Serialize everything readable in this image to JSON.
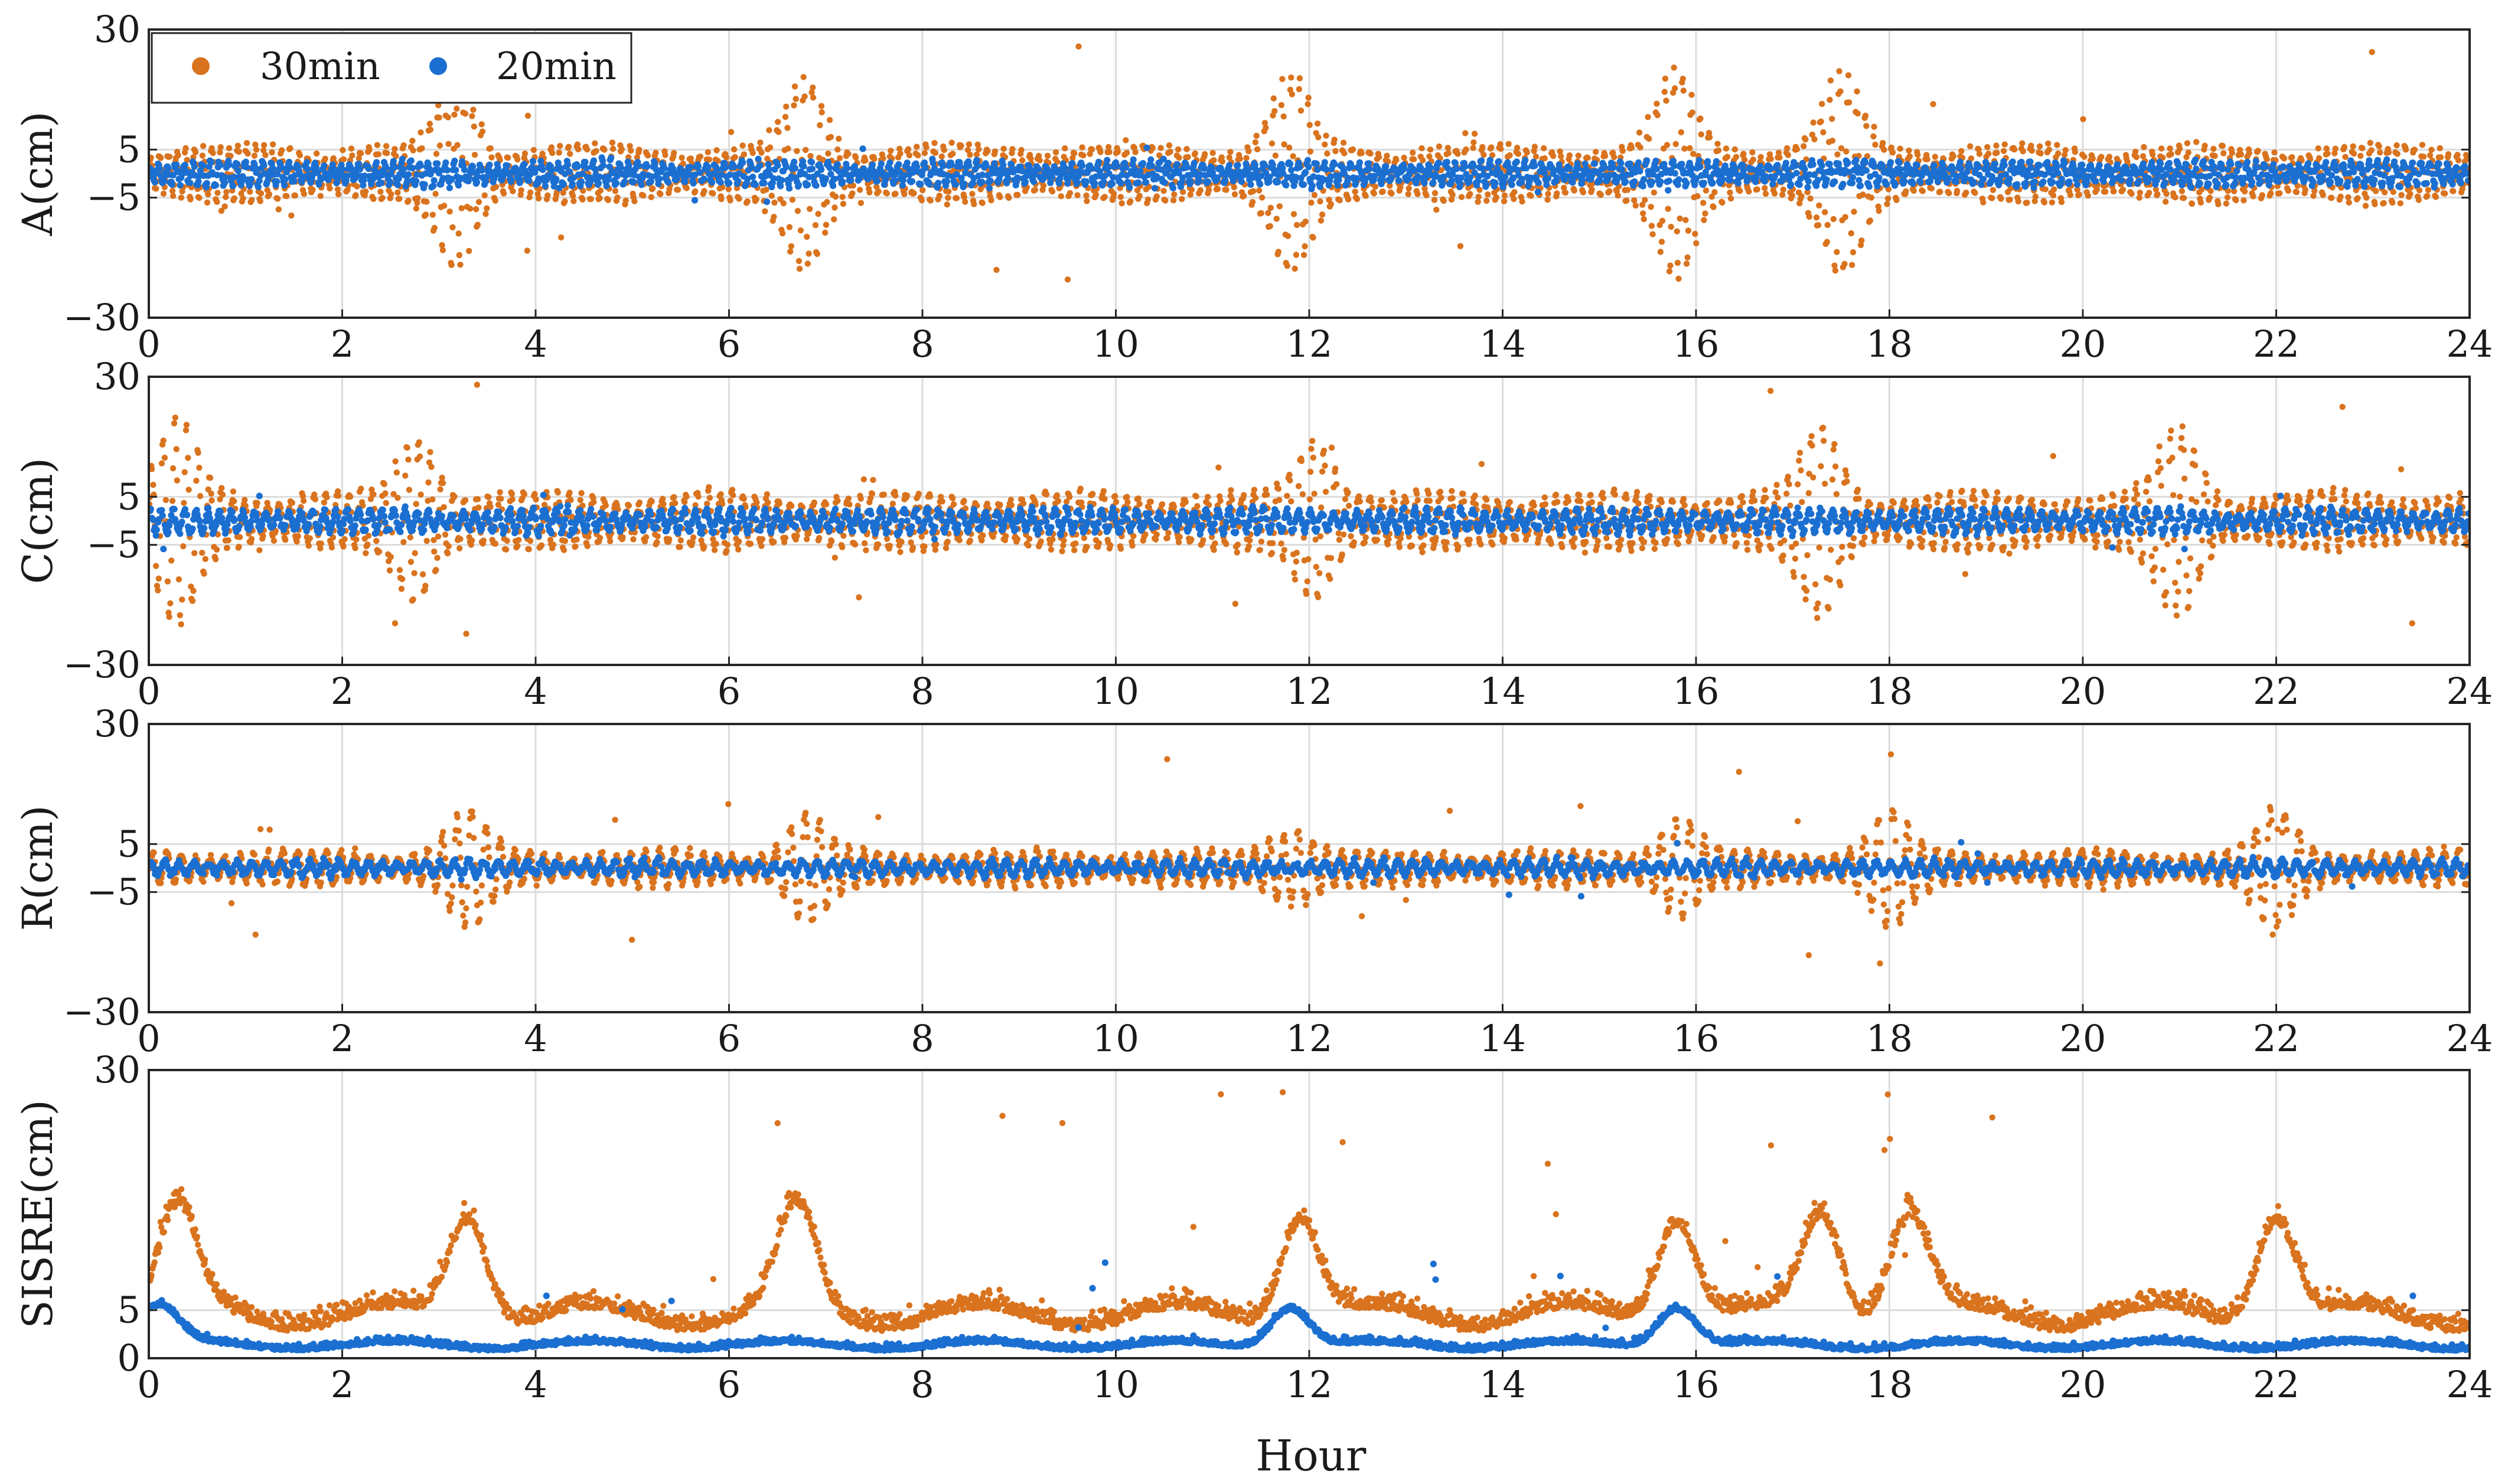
{
  "chart_data": {
    "type": "scatter",
    "x_label": "Hour",
    "x_range": [
      0,
      24
    ],
    "x_ticks": [
      "0",
      "2",
      "4",
      "6",
      "8",
      "10",
      "12",
      "14",
      "16",
      "18",
      "20",
      "22",
      "24"
    ],
    "legend": {
      "placement": "top-left",
      "entries": [
        {
          "name": "30min",
          "color": "#d9731e"
        },
        {
          "name": "20min",
          "color": "#1b6fd1"
        }
      ]
    },
    "panels": [
      {
        "id": "A",
        "ylabel": "A(cm)",
        "ylim": [
          -30,
          30
        ],
        "yticks": [
          "30",
          "5",
          "−5",
          "−30"
        ],
        "ytick_values": [
          30,
          5,
          -5,
          -30
        ],
        "series": [
          {
            "name": "30min",
            "typical_amplitude_cm": 6,
            "max_abs_cm": 28,
            "bursts_at_hours": [
              3.2,
              6.8,
              11.8,
              15.8,
              17.5
            ]
          },
          {
            "name": "20min",
            "typical_amplitude_cm": 2.5,
            "max_abs_cm": 8
          }
        ]
      },
      {
        "id": "C",
        "ylabel": "C(cm)",
        "ylim": [
          -30,
          30
        ],
        "yticks": [
          "30",
          "5",
          "−5",
          "−30"
        ],
        "ytick_values": [
          30,
          5,
          -5,
          -30
        ],
        "series": [
          {
            "name": "30min",
            "typical_amplitude_cm": 6,
            "max_abs_cm": 30,
            "bursts_at_hours": [
              0.3,
              2.8,
              12.1,
              17.3,
              21
            ]
          },
          {
            "name": "20min",
            "typical_amplitude_cm": 2.5,
            "max_abs_cm": 7
          }
        ]
      },
      {
        "id": "R",
        "ylabel": "R(cm)",
        "ylim": [
          -30,
          30
        ],
        "yticks": [
          "30",
          "5",
          "−5",
          "−30"
        ],
        "ytick_values": [
          30,
          5,
          -5,
          -30
        ],
        "series": [
          {
            "name": "30min",
            "typical_amplitude_cm": 3.5,
            "max_abs_cm": 25,
            "bursts_at_hours": [
              3.3,
              6.8,
              11.8,
              15.8,
              18,
              22
            ]
          },
          {
            "name": "20min",
            "typical_amplitude_cm": 1.5,
            "max_abs_cm": 6
          }
        ]
      },
      {
        "id": "SISRE",
        "ylabel": "SISRE(cm)",
        "ylim": [
          0,
          30
        ],
        "yticks": [
          "30",
          "5",
          "0"
        ],
        "ytick_values": [
          30,
          5,
          0
        ],
        "series": [
          {
            "name": "30min",
            "baseline_cm": 4,
            "peaks_at_hours": [
              0.3,
              3.3,
              6.7,
              11.9,
              15.8,
              17.3,
              18.2,
              22
            ]
          },
          {
            "name": "20min",
            "baseline_cm": 1.2,
            "peaks_at_hours": [
              0.1,
              11.8,
              15.8
            ]
          }
        ]
      }
    ]
  }
}
